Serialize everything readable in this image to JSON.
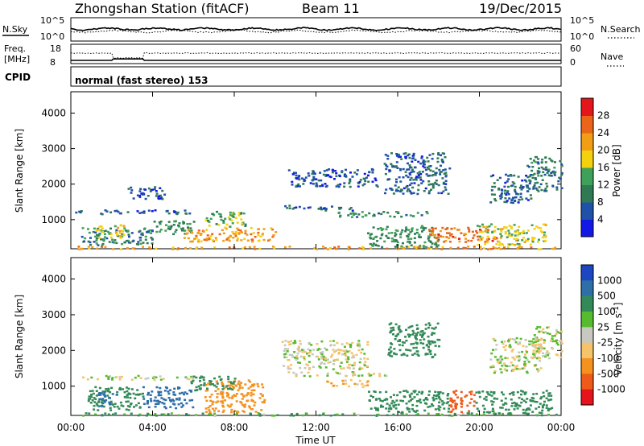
{
  "header": {
    "station": "Zhongshan Station (fitACF)",
    "beam": "Beam 11",
    "date": "19/Dec/2015"
  },
  "panels": {
    "nsky": {
      "label": "N.Sky",
      "ticks": [
        "10^5",
        "10^0"
      ],
      "right_label": "N.Search",
      "right_ticks": [
        "10^5",
        "10^0"
      ]
    },
    "freq": {
      "label_line1": "Freq.",
      "label_line2": "[MHz]",
      "ticks": [
        "18",
        "8"
      ],
      "right_label": "Nave",
      "right_ticks": [
        "60",
        "0"
      ]
    },
    "cpid": {
      "label": "CPID",
      "text": "normal (fast stereo) 153"
    }
  },
  "colors": {
    "background": "#ffffff",
    "axes": "#000000"
  },
  "chart_data": [
    {
      "type": "heatmap",
      "name": "power",
      "ylabel": "Slant Range [km]",
      "xlabel": "Time UT",
      "x_ticks": [
        "00:00",
        "04:00",
        "08:00",
        "12:00",
        "16:00",
        "20:00",
        "00:00"
      ],
      "x_range_hours": [
        0,
        24
      ],
      "y_ticks": [
        1000,
        2000,
        3000,
        4000
      ],
      "ylim": [
        180,
        4600
      ],
      "colorbar": {
        "label": "Power [dB]",
        "tick_labels": [
          "4",
          "8",
          "12",
          "16",
          "20",
          "24",
          "28"
        ],
        "range": [
          0,
          32
        ],
        "colors": [
          "#1418e6",
          "#2051a8",
          "#2f7a55",
          "#3fa05a",
          "#f3d10f",
          "#f29d16",
          "#ea6419",
          "#e3161b"
        ]
      },
      "blobs": [
        {
          "t0": 0.0,
          "t1": 24.0,
          "r0": 190,
          "r1": 270,
          "v": 22
        },
        {
          "t0": 0.2,
          "t1": 5.8,
          "r0": 1180,
          "r1": 1300,
          "v": 7
        },
        {
          "t0": 0.5,
          "t1": 4.0,
          "r0": 300,
          "r1": 800,
          "v": 10
        },
        {
          "t0": 1.2,
          "t1": 2.6,
          "r0": 500,
          "r1": 900,
          "v": 17
        },
        {
          "t0": 2.7,
          "t1": 4.6,
          "r0": 1600,
          "r1": 1950,
          "v": 6
        },
        {
          "t0": 4.0,
          "t1": 6.0,
          "r0": 600,
          "r1": 1000,
          "v": 12
        },
        {
          "t0": 5.5,
          "t1": 10.0,
          "r0": 400,
          "r1": 800,
          "v": 22
        },
        {
          "t0": 6.5,
          "t1": 8.5,
          "r0": 800,
          "r1": 1250,
          "v": 14
        },
        {
          "t0": 10.3,
          "t1": 14.0,
          "r0": 1280,
          "r1": 1420,
          "v": 7
        },
        {
          "t0": 10.6,
          "t1": 15.0,
          "r0": 1950,
          "r1": 2450,
          "v": 6
        },
        {
          "t0": 13.0,
          "t1": 17.5,
          "r0": 1100,
          "r1": 1250,
          "v": 11
        },
        {
          "t0": 14.5,
          "t1": 18.0,
          "r0": 250,
          "r1": 850,
          "v": 12
        },
        {
          "t0": 15.3,
          "t1": 18.5,
          "r0": 1750,
          "r1": 2900,
          "v": 7
        },
        {
          "t0": 17.5,
          "t1": 21.0,
          "r0": 400,
          "r1": 800,
          "v": 25
        },
        {
          "t0": 19.8,
          "t1": 23.2,
          "r0": 300,
          "r1": 900,
          "v": 17
        },
        {
          "t0": 20.5,
          "t1": 22.5,
          "r0": 1500,
          "r1": 2300,
          "v": 7
        },
        {
          "t0": 22.3,
          "t1": 24.0,
          "r0": 1800,
          "r1": 2800,
          "v": 9
        }
      ]
    },
    {
      "type": "heatmap",
      "name": "velocity",
      "ylabel": "Slant Range [km]",
      "xlabel": "Time UT",
      "x_ticks": [
        "00:00",
        "04:00",
        "08:00",
        "12:00",
        "16:00",
        "20:00",
        "00:00"
      ],
      "x_range_hours": [
        0,
        24
      ],
      "y_ticks": [
        1000,
        2000,
        3000,
        4000
      ],
      "ylim": [
        180,
        4600
      ],
      "colorbar": {
        "label": "Velocity [m s^-1]",
        "tick_labels": [
          "1000",
          "500",
          "100",
          "25",
          "-25",
          "-100",
          "-500",
          "-1000"
        ],
        "colors": [
          "#1d46c1",
          "#2e6fa8",
          "#338a58",
          "#57bb2f",
          "#c8c8c0",
          "#f4c36a",
          "#f4921d",
          "#ee5a1a",
          "#e5131b"
        ]
      },
      "blobs": [
        {
          "t0": 0.0,
          "t1": 24.0,
          "r0": 190,
          "r1": 270,
          "v": 100
        },
        {
          "t0": 0.3,
          "t1": 6.0,
          "r0": 1200,
          "r1": 1320,
          "v": 0
        },
        {
          "t0": 0.8,
          "t1": 3.5,
          "r0": 350,
          "r1": 1000,
          "v": 300
        },
        {
          "t0": 1.3,
          "t1": 2.2,
          "r0": 400,
          "r1": 900,
          "v": 800
        },
        {
          "t0": 3.5,
          "t1": 6.0,
          "r0": 400,
          "r1": 1000,
          "v": 900
        },
        {
          "t0": 6.5,
          "t1": 9.5,
          "r0": 300,
          "r1": 1200,
          "v": -300
        },
        {
          "t0": 5.8,
          "t1": 8.0,
          "r0": 900,
          "r1": 1300,
          "v": 300
        },
        {
          "t0": 10.3,
          "t1": 14.5,
          "r0": 1500,
          "r1": 2300,
          "v": 0
        },
        {
          "t0": 10.5,
          "t1": 15.5,
          "r0": 1300,
          "r1": 1420,
          "v": 0
        },
        {
          "t0": 12.5,
          "t1": 14.5,
          "r0": 1000,
          "r1": 1200,
          "v": -80
        },
        {
          "t0": 14.5,
          "t1": 18.5,
          "r0": 300,
          "r1": 900,
          "v": 300
        },
        {
          "t0": 15.5,
          "t1": 18.0,
          "r0": 1800,
          "r1": 2800,
          "v": 250
        },
        {
          "t0": 18.5,
          "t1": 19.8,
          "r0": 300,
          "r1": 900,
          "v": -600
        },
        {
          "t0": 19.8,
          "t1": 23.5,
          "r0": 250,
          "r1": 900,
          "v": 300
        },
        {
          "t0": 20.5,
          "t1": 23.0,
          "r0": 1400,
          "r1": 2400,
          "v": 0
        },
        {
          "t0": 22.5,
          "t1": 24.0,
          "r0": 1800,
          "r1": 2700,
          "v": 0
        }
      ]
    }
  ]
}
